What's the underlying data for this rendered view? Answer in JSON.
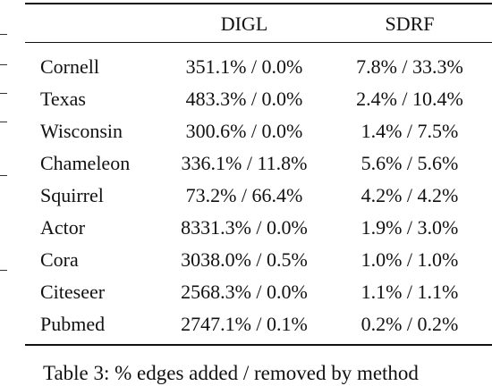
{
  "table": {
    "headers": [
      "",
      "DIGL",
      "SDRF"
    ],
    "rows": [
      {
        "dataset": "Cornell",
        "digl": "351.1% / 0.0%",
        "sdrf": "7.8% / 33.3%"
      },
      {
        "dataset": "Texas",
        "digl": "483.3% / 0.0%",
        "sdrf": "2.4% / 10.4%"
      },
      {
        "dataset": "Wisconsin",
        "digl": "300.6% / 0.0%",
        "sdrf": "1.4% / 7.5%"
      },
      {
        "dataset": "Chameleon",
        "digl": "336.1% / 11.8%",
        "sdrf": "5.6% / 5.6%"
      },
      {
        "dataset": "Squirrel",
        "digl": "73.2% / 66.4%",
        "sdrf": "4.2% / 4.2%"
      },
      {
        "dataset": "Actor",
        "digl": "8331.3% / 0.0%",
        "sdrf": "1.9% / 3.0%"
      },
      {
        "dataset": "Cora",
        "digl": "3038.0% / 0.5%",
        "sdrf": "1.0% / 1.0%"
      },
      {
        "dataset": "Citeseer",
        "digl": "2568.3% / 0.0%",
        "sdrf": "1.1% / 1.1%"
      },
      {
        "dataset": "Pubmed",
        "digl": "2747.1% / 0.1%",
        "sdrf": "0.2% / 0.2%"
      }
    ]
  },
  "caption": "Table 3: % edges added / removed by method"
}
